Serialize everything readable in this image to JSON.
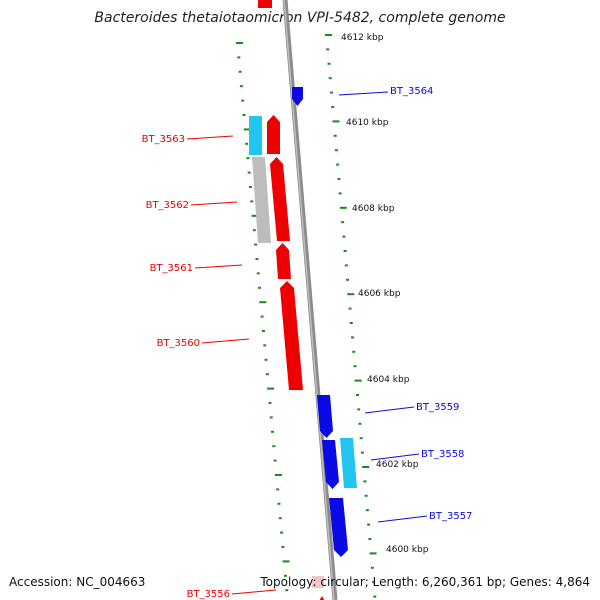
{
  "title": "Bacteroides thetaiotaomicron VPI-5482, complete genome",
  "footer": {
    "accession": "Accession: NC_004663",
    "summary": "Topology: circular; Length: 6,260,361 bp; Genes: 4,864"
  },
  "ticks": [
    "4612 kbp",
    "4610 kbp",
    "4608 kbp",
    "4606 kbp",
    "4604 kbp",
    "4602 kbp",
    "4600 kbp"
  ],
  "genes": [
    {
      "name": "BT_3564",
      "strand": "minus",
      "color": "#0a0ae6"
    },
    {
      "name": "BT_3563",
      "strand": "plus",
      "color": "#ee0000"
    },
    {
      "name": "BT_3562",
      "strand": "plus",
      "color": "#ee0000"
    },
    {
      "name": "BT_3561",
      "strand": "plus",
      "color": "#ee0000"
    },
    {
      "name": "BT_3560",
      "strand": "plus",
      "color": "#ee0000"
    },
    {
      "name": "BT_3559",
      "strand": "minus",
      "color": "#0a0ae6"
    },
    {
      "name": "BT_3558",
      "strand": "minus",
      "color": "#0a0ae6"
    },
    {
      "name": "BT_3557",
      "strand": "minus",
      "color": "#0a0ae6"
    },
    {
      "name": "BT_3556",
      "strand": "plus",
      "color": "#ee0000"
    }
  ],
  "feature_colors": {
    "cds_plus": "#ee0000",
    "cds_minus": "#0a0ae6",
    "rna": "#22c4f0",
    "other": "#bdbdbd",
    "backbone": "#8c8c8c",
    "tick_marks": "#1a8a1a"
  }
}
